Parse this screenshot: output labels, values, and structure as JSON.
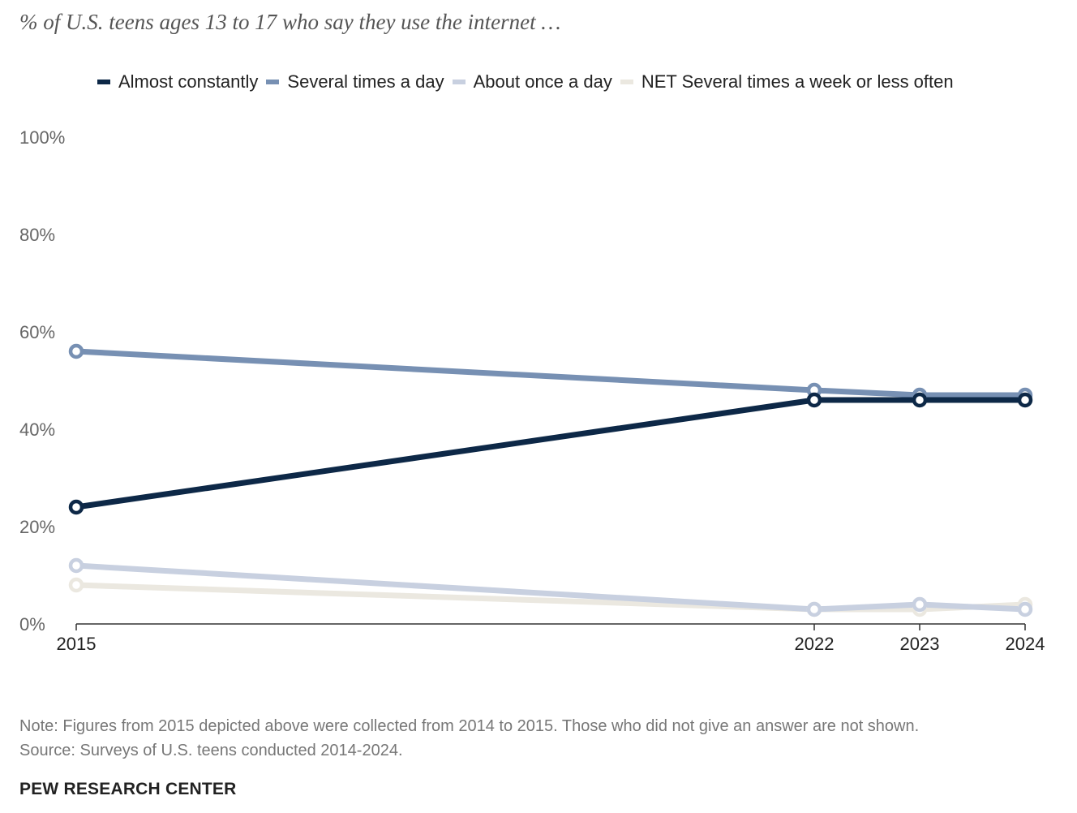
{
  "subtitle": "% of U.S. teens ages 13 to 17 who say they use the internet …",
  "legend": [
    {
      "label": "Almost constantly",
      "color": "#0d2847"
    },
    {
      "label": "Several times a day",
      "color": "#7790b3"
    },
    {
      "label": "About once a day",
      "color": "#c8d0e0"
    },
    {
      "label": "NET Several times a week or less often",
      "color": "#ebe8e0"
    }
  ],
  "chart_data": {
    "type": "line",
    "x": [
      2015,
      2022,
      2023,
      2024
    ],
    "x_tick_labels": [
      "2015",
      "2022",
      "2023",
      "2024"
    ],
    "y_tick_labels": [
      "0%",
      "20%",
      "40%",
      "60%",
      "80%",
      "100%"
    ],
    "y_ticks": [
      0,
      20,
      40,
      60,
      80,
      100
    ],
    "ylim": [
      0,
      100
    ],
    "xlim": [
      2015,
      2024
    ],
    "legend_position": "top",
    "grid": false,
    "series": [
      {
        "name": "Almost constantly",
        "color": "#0d2847",
        "values": [
          24,
          46,
          46,
          46
        ]
      },
      {
        "name": "Several times a day",
        "color": "#7790b3",
        "values": [
          56,
          48,
          47,
          47
        ]
      },
      {
        "name": "About once a day",
        "color": "#c8d0e0",
        "values": [
          12,
          3,
          4,
          3
        ]
      },
      {
        "name": "NET Several times a week or less often",
        "color": "#ebe8e0",
        "values": [
          8,
          3,
          3,
          4
        ]
      }
    ]
  },
  "note": "Note: Figures from 2015 depicted above were collected from 2014 to 2015. Those who did not give an answer are not shown.",
  "source": "Source: Surveys of U.S. teens conducted 2014-2024.",
  "organization": "PEW RESEARCH CENTER",
  "colors": {
    "axis_text": "#666666",
    "axis_line": "#333333"
  }
}
